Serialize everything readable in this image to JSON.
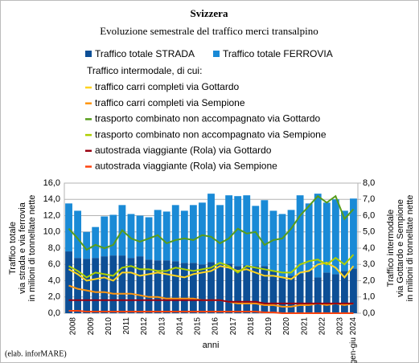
{
  "chart_data": {
    "type": "bar",
    "stacked": true,
    "title": "Svizzera",
    "subtitle": "Evoluzione semestrale del traffico merci transalpino",
    "legend_heading": "Traffico intermodale, di cui:",
    "y_label": [
      "Traffico totale",
      "via strada e via ferrovia",
      "in milioni di tonnellate nette"
    ],
    "y2_label": [
      "Traffico intermodale",
      "via Gottardo e Sempione",
      "in milioni di tonnellate nette"
    ],
    "x_label": "anni",
    "source": "(elab. inforMARE)",
    "grid": true,
    "categories": [
      "2008",
      null,
      "2009",
      null,
      "2010",
      null,
      "2011",
      null,
      "2012",
      null,
      "2013",
      null,
      "2014",
      null,
      "2015",
      null,
      "2016",
      null,
      "2017",
      null,
      "2018",
      null,
      "2019",
      null,
      "2020",
      null,
      "2021",
      null,
      "2022",
      null,
      "2023",
      null,
      "gen-giu 2024"
    ],
    "ylim": [
      0,
      16
    ],
    "yticks": [
      {
        "value": 0,
        "label": "0,0"
      },
      {
        "value": 2,
        "label": "2,0"
      },
      {
        "value": 4,
        "label": "4,0"
      },
      {
        "value": 6,
        "label": "6,0"
      },
      {
        "value": 8,
        "label": "8,0"
      },
      {
        "value": 10,
        "label": "10,0"
      },
      {
        "value": 12,
        "label": "12,0"
      },
      {
        "value": 14,
        "label": "14,0"
      },
      {
        "value": 16,
        "label": "16,0"
      }
    ],
    "y2lim": [
      0,
      8
    ],
    "y2ticks": [
      {
        "value": 0,
        "label": "0,0"
      },
      {
        "value": 1,
        "label": "1,0"
      },
      {
        "value": 2,
        "label": "2,0"
      },
      {
        "value": 3,
        "label": "3,0"
      },
      {
        "value": 4,
        "label": "4,0"
      },
      {
        "value": 5,
        "label": "5,0"
      },
      {
        "value": 6,
        "label": "6,0"
      },
      {
        "value": 7,
        "label": "7,0"
      },
      {
        "value": 8,
        "label": "8,0"
      }
    ],
    "series": [
      {
        "name": "Traffico totale STRADA",
        "type": "bar",
        "color": "#0d4f96",
        "values": [
          7.6,
          6.8,
          6.7,
          6.8,
          7.0,
          7.1,
          7.1,
          6.8,
          7.0,
          6.6,
          6.5,
          6.5,
          6.4,
          6.2,
          6.2,
          6.0,
          6.3,
          6.0,
          6.1,
          5.8,
          5.9,
          5.8,
          5.8,
          5.2,
          4.5,
          4.6,
          4.9,
          5.3,
          4.4,
          5.0,
          4.8,
          5.2,
          5.5
        ]
      },
      {
        "name": "Traffico totale FERROVIA",
        "type": "bar",
        "color": "#1a8ad6",
        "values": [
          5.9,
          5.8,
          3.3,
          3.8,
          4.9,
          5.0,
          6.2,
          5.4,
          5.0,
          5.2,
          6.2,
          6.0,
          6.9,
          6.4,
          7.1,
          7.6,
          8.4,
          7.3,
          8.4,
          8.6,
          8.6,
          7.4,
          8.1,
          7.4,
          7.7,
          8.1,
          9.6,
          8.2,
          10.3,
          8.6,
          9.2,
          7.4,
          8.6
        ]
      },
      {
        "name": "traffico carri completi via Gottardo",
        "type": "line",
        "axis": "y2",
        "color": "#ffd320",
        "values": [
          2.7,
          2.4,
          2.0,
          2.1,
          2.2,
          2.0,
          2.5,
          2.5,
          2.3,
          2.4,
          2.5,
          2.4,
          2.3,
          2.2,
          2.4,
          2.5,
          2.6,
          2.9,
          2.8,
          2.6,
          2.7,
          2.5,
          2.3,
          2.3,
          2.2,
          2.1,
          2.5,
          2.6,
          3.0,
          3.1,
          2.8,
          2.2,
          2.9
        ]
      },
      {
        "name": "traffico carri completi via Sempione",
        "type": "line",
        "axis": "y2",
        "color": "#ff950e",
        "values": [
          1.7,
          1.5,
          1.4,
          1.3,
          1.3,
          1.2,
          1.2,
          1.2,
          1.1,
          1.0,
          1.0,
          0.9,
          0.9,
          0.9,
          0.9,
          0.8,
          0.8,
          0.8,
          0.7,
          0.6,
          0.6,
          0.6,
          0.5,
          0.5,
          0.4,
          0.4,
          0.5,
          0.5,
          0.6,
          0.5,
          0.6,
          0.5,
          0.6
        ]
      },
      {
        "name": "trasporto combinato non accompagnato via Gottardo",
        "type": "line",
        "axis": "y2",
        "color": "#579d1c",
        "values": [
          5.2,
          4.6,
          3.9,
          4.2,
          4.0,
          4.2,
          5.1,
          4.6,
          4.4,
          4.6,
          4.8,
          4.3,
          4.5,
          4.6,
          4.5,
          4.8,
          4.7,
          4.3,
          4.6,
          5.2,
          4.9,
          5.0,
          4.2,
          4.5,
          4.6,
          5.2,
          6.0,
          6.6,
          7.2,
          6.8,
          7.2,
          5.8,
          6.4
        ]
      },
      {
        "name": "trasporto combinato non accompagnato via Sempione",
        "type": "line",
        "axis": "y2",
        "color": "#aecf00",
        "values": [
          2.9,
          2.6,
          2.2,
          2.5,
          2.4,
          2.3,
          2.8,
          2.9,
          2.7,
          2.7,
          2.6,
          2.6,
          2.8,
          2.7,
          2.6,
          2.7,
          2.8,
          3.1,
          2.9,
          2.5,
          2.9,
          2.8,
          2.7,
          2.6,
          2.5,
          2.5,
          3.0,
          3.2,
          3.3,
          3.0,
          3.4,
          3.0,
          3.6
        ]
      },
      {
        "name": "autostrada viaggiante (Rola) via Gottardo",
        "type": "line",
        "axis": "y2",
        "color": "#9a0010",
        "values": [
          0.8,
          0.8,
          0.8,
          0.8,
          0.8,
          0.8,
          0.8,
          0.8,
          0.8,
          0.8,
          0.8,
          0.8,
          0.8,
          0.8,
          0.8,
          0.8,
          0.8,
          0.8,
          0.7,
          0.7,
          0.7,
          0.7,
          0.6,
          0.6,
          0.6,
          0.6,
          0.6,
          0.6,
          0.6,
          0.6,
          0.6,
          0.6,
          0.6
        ]
      },
      {
        "name": "autostrada viaggiante (Rola) via Sempione",
        "type": "line",
        "axis": "y2",
        "color": "#ff420e",
        "values": [
          0.15,
          0.15,
          0.1,
          0.1,
          0.1,
          0.1,
          0.1,
          0.1,
          0.1,
          0.1,
          0.1,
          0.1,
          0.1,
          0.1,
          0.1,
          0.1,
          0.1,
          0.1,
          0.1,
          0.1,
          0.1,
          0.1,
          0.05,
          0.05,
          0.0,
          0.0,
          0.0,
          0.0,
          0.0,
          0.0,
          0.0,
          0.0,
          0.0
        ]
      }
    ]
  }
}
